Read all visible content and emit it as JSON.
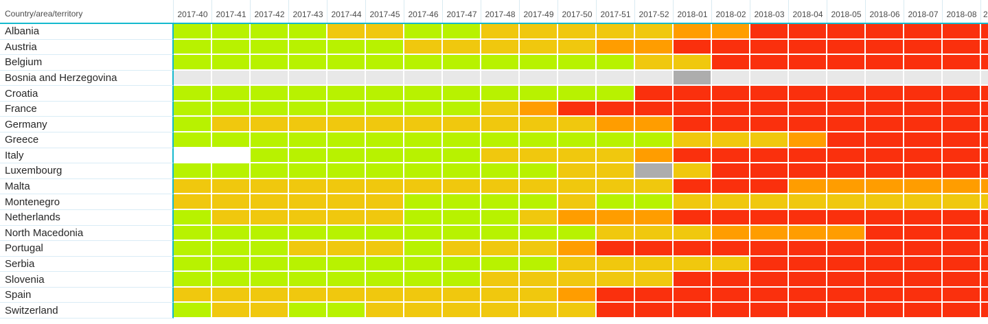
{
  "chart_data": {
    "type": "heatmap",
    "corner_label": "Country/area/territory",
    "columns": [
      "2017-40",
      "2017-41",
      "2017-42",
      "2017-43",
      "2017-44",
      "2017-45",
      "2017-46",
      "2017-47",
      "2017-48",
      "2017-49",
      "2017-50",
      "2017-51",
      "2017-52",
      "2018-01",
      "2018-02",
      "2018-03",
      "2018-04",
      "2018-05",
      "2018-06",
      "2018-07",
      "2018-08"
    ],
    "partial_column_label": "2",
    "palette": {
      "G": "#B8F200",
      "Y": "#F0C80E",
      "O": "#FF9D00",
      "R": "#FA300D",
      "L": "#E8E8E8",
      "D": "#ADADAD",
      "W": "#FFFFFF"
    },
    "accent_colors": {
      "header_rule": "#14B9CE",
      "label_separator": "#D9ECF6",
      "header_text": "#4A4A4A",
      "label_text": "#262626"
    },
    "rows": [
      {
        "name": "Albania",
        "cells": "GGGGYYGGYYYYYOORRRRRR",
        "partial": "R"
      },
      {
        "name": "Austria",
        "cells": "GGGGGGYYYYYOORRRRRRRR",
        "partial": "R"
      },
      {
        "name": "Belgium",
        "cells": "GGGGGGGGGGGGYYRRRRRRR",
        "partial": "R"
      },
      {
        "name": "Bosnia and Herzegovina",
        "cells": "LLLLLLLLLLLLLDLLLLLLL",
        "partial": "L"
      },
      {
        "name": "Croatia",
        "cells": "GGGGGGGGGGGGRRRRRRRRR",
        "partial": "R"
      },
      {
        "name": "France",
        "cells": "GGGGGGGGYORRRRRRRRRRR",
        "partial": "R"
      },
      {
        "name": "Germany",
        "cells": "GYYYYYYYYYYOORRRRRRRR",
        "partial": "R"
      },
      {
        "name": "Greece",
        "cells": "GGGGGGGGGGGGGYYYORRRR",
        "partial": "R"
      },
      {
        "name": "Italy",
        "cells": "WWGGGGGGYYYYORRRRRRRR",
        "partial": "R"
      },
      {
        "name": "Luxembourg",
        "cells": "GGGGGGGGGGYYDYRRRRRRR",
        "partial": "R"
      },
      {
        "name": "Malta",
        "cells": "YYYYYYYYYYYYYRRROOOOO",
        "partial": "O"
      },
      {
        "name": "Montenegro",
        "cells": "YYYYYYGGGGYGGYYYYYYYY",
        "partial": "Y"
      },
      {
        "name": "Netherlands",
        "cells": "GYYYYYGGGYOOORRRRRRRR",
        "partial": "R"
      },
      {
        "name": "North Macedonia",
        "cells": "GGGGGGGGGGGYYYOOOORRR",
        "partial": "R"
      },
      {
        "name": "Portugal",
        "cells": "GGGYYYGYYYORRRRRRRRRR",
        "partial": "R"
      },
      {
        "name": "Serbia",
        "cells": "GGGGGGGGGGYYYYYRRRRRR",
        "partial": "R"
      },
      {
        "name": "Slovenia",
        "cells": "GGGGGGGGYYYYYRRRRRRRR",
        "partial": "R"
      },
      {
        "name": "Spain",
        "cells": "YYYYYYYYYYORRRRRRRRRR",
        "partial": "R"
      },
      {
        "name": "Switzerland",
        "cells": "GYYGGYYYYYYRRRRRRRRRR",
        "partial": "R"
      }
    ]
  }
}
